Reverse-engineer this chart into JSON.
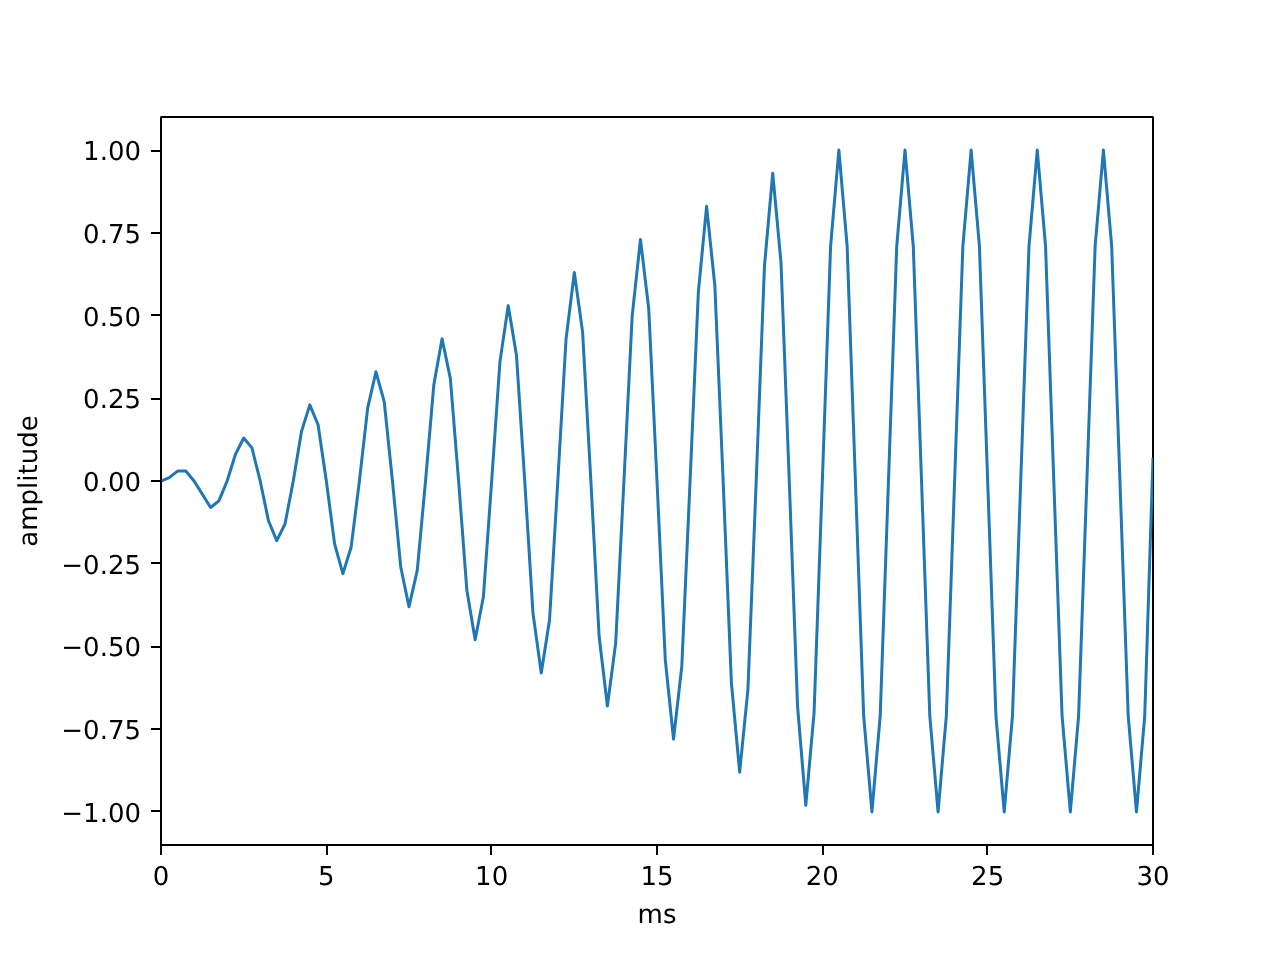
{
  "chart_data": {
    "type": "line",
    "xlabel": "ms",
    "ylabel": "amplitude",
    "x": [
      0,
      0.25,
      0.5,
      0.75,
      1,
      1.25,
      1.5,
      1.75,
      2,
      2.25,
      2.5,
      2.75,
      3,
      3.25,
      3.5,
      3.75,
      4,
      4.25,
      4.5,
      4.75,
      5,
      5.25,
      5.5,
      5.75,
      6,
      6.25,
      6.5,
      6.75,
      7,
      7.25,
      7.5,
      7.75,
      8,
      8.25,
      8.5,
      8.75,
      9,
      9.25,
      9.5,
      9.75,
      10,
      10.25,
      10.5,
      10.75,
      11,
      11.25,
      11.5,
      11.75,
      12,
      12.25,
      12.5,
      12.75,
      13,
      13.25,
      13.5,
      13.75,
      14,
      14.25,
      14.5,
      14.75,
      15,
      15.25,
      15.5,
      15.75,
      16,
      16.25,
      16.5,
      16.75,
      17,
      17.25,
      17.5,
      17.75,
      18,
      18.25,
      18.5,
      18.75,
      19,
      19.25,
      19.5,
      19.75,
      20,
      20.25,
      20.5,
      20.75,
      21,
      21.25,
      21.5,
      21.75,
      22,
      22.25,
      22.5,
      22.75,
      23,
      23.25,
      23.5,
      23.75,
      24,
      24.25,
      24.5,
      24.75,
      25,
      25.25,
      25.5,
      25.75,
      26,
      26.25,
      26.5,
      26.75,
      27,
      27.25,
      27.5,
      27.75,
      28,
      28.25,
      28.5,
      28.75,
      29,
      29.25,
      29.5,
      29.75,
      30
    ],
    "series": [
      {
        "color": "#1f77b4",
        "values": [
          0,
          0.01,
          0.03,
          0.03,
          0,
          -0.04,
          -0.08,
          -0.06,
          0,
          0.08,
          0.13,
          0.1,
          0,
          -0.12,
          -0.18,
          -0.13,
          0,
          0.15,
          0.23,
          0.17,
          0,
          -0.19,
          -0.28,
          -0.2,
          0,
          0.22,
          0.33,
          0.24,
          0,
          -0.26,
          -0.38,
          -0.27,
          0,
          0.29,
          0.43,
          0.31,
          0,
          -0.33,
          -0.48,
          -0.35,
          0,
          0.36,
          0.53,
          0.38,
          0,
          -0.4,
          -0.58,
          -0.42,
          0,
          0.43,
          0.63,
          0.45,
          0,
          -0.47,
          -0.68,
          -0.49,
          0,
          0.5,
          0.73,
          0.52,
          0,
          -0.54,
          -0.78,
          -0.56,
          0,
          0.57,
          0.83,
          0.59,
          0,
          -0.61,
          -0.88,
          -0.63,
          0,
          0.65,
          0.93,
          0.66,
          0,
          -0.68,
          -0.98,
          -0.7,
          0,
          0.71,
          1,
          0.71,
          0,
          -0.71,
          -1,
          -0.71,
          0,
          0.71,
          1,
          0.71,
          0,
          -0.71,
          -1,
          -0.71,
          0,
          0.71,
          1,
          0.71,
          0,
          -0.71,
          -1,
          -0.71,
          0,
          0.71,
          1,
          0.71,
          0,
          -0.71,
          -1,
          -0.71,
          0,
          0.71,
          1,
          0.71,
          0,
          -0.71,
          -1,
          -0.71,
          0.07
        ]
      }
    ],
    "xlim": [
      0,
      30
    ],
    "xticks": [
      0,
      5,
      10,
      15,
      20,
      25,
      30
    ],
    "ylim": [
      -1.1,
      1.1
    ],
    "yticks": [
      {
        "value": -1,
        "label": "−1.00"
      },
      {
        "value": -0.75,
        "label": "−0.75"
      },
      {
        "value": -0.5,
        "label": "−0.50"
      },
      {
        "value": -0.25,
        "label": "−0.25"
      },
      {
        "value": 0,
        "label": "0.00"
      },
      {
        "value": 0.25,
        "label": "0.25"
      },
      {
        "value": 0.5,
        "label": "0.50"
      },
      {
        "value": 0.75,
        "label": "0.75"
      },
      {
        "value": 1,
        "label": "1.00"
      }
    ],
    "grid": false,
    "marker": "none",
    "line_style": "solid"
  }
}
